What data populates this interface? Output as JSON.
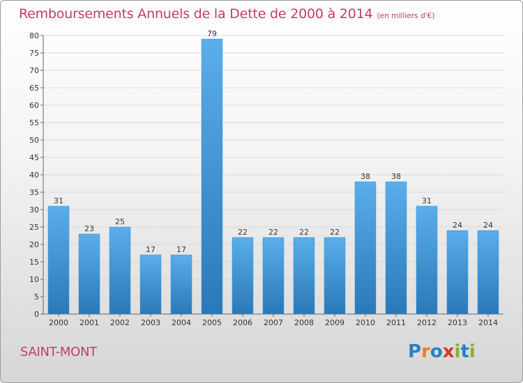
{
  "header": {
    "title": "Remboursements Annuels de la Dette de 2000 à 2014",
    "unit": "(en milliers d'€)"
  },
  "footer": {
    "place": "SAINT-MONT",
    "brand": "Proxiti"
  },
  "chart_data": {
    "type": "bar",
    "title": "Remboursements Annuels de la Dette de 2000 à 2014",
    "subtitle": "(en milliers d'€)",
    "categories": [
      "2000",
      "2001",
      "2002",
      "2003",
      "2004",
      "2005",
      "2006",
      "2007",
      "2008",
      "2009",
      "2010",
      "2011",
      "2012",
      "2013",
      "2014"
    ],
    "values": [
      31,
      23,
      25,
      17,
      17,
      79,
      22,
      22,
      22,
      22,
      38,
      38,
      31,
      24,
      24
    ],
    "ylim": [
      0,
      80
    ],
    "yticks": [
      0,
      5,
      10,
      15,
      20,
      25,
      30,
      35,
      40,
      45,
      50,
      55,
      60,
      65,
      70,
      75,
      80
    ],
    "grid": true,
    "bar_color_top": "#5aaeea",
    "bar_color_bottom": "#2a78b8"
  }
}
